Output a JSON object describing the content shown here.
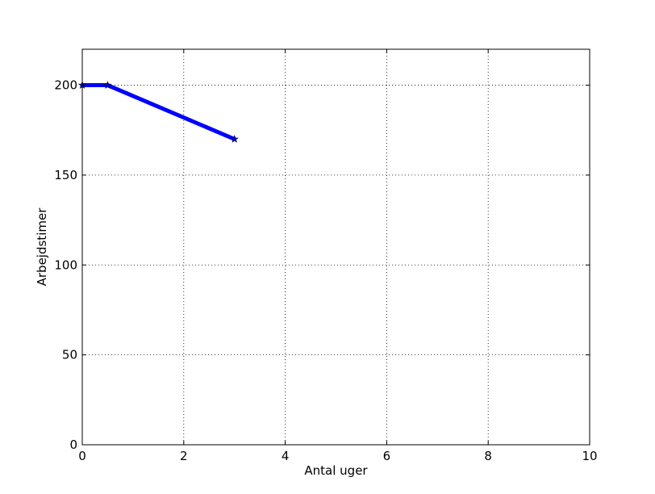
{
  "chart_data": {
    "type": "line",
    "title": "",
    "xlabel": "Antal uger",
    "ylabel": "Arbejdstimer",
    "xlim": [
      0,
      10
    ],
    "ylim": [
      0,
      220
    ],
    "xticks": [
      0,
      2,
      4,
      6,
      8,
      10
    ],
    "yticks": [
      0,
      50,
      100,
      150,
      200
    ],
    "grid": true,
    "series": [
      {
        "color": "#0000ff",
        "marker": "star",
        "x": [
          0,
          0.5,
          3
        ],
        "y": [
          200,
          200,
          170
        ]
      }
    ]
  }
}
